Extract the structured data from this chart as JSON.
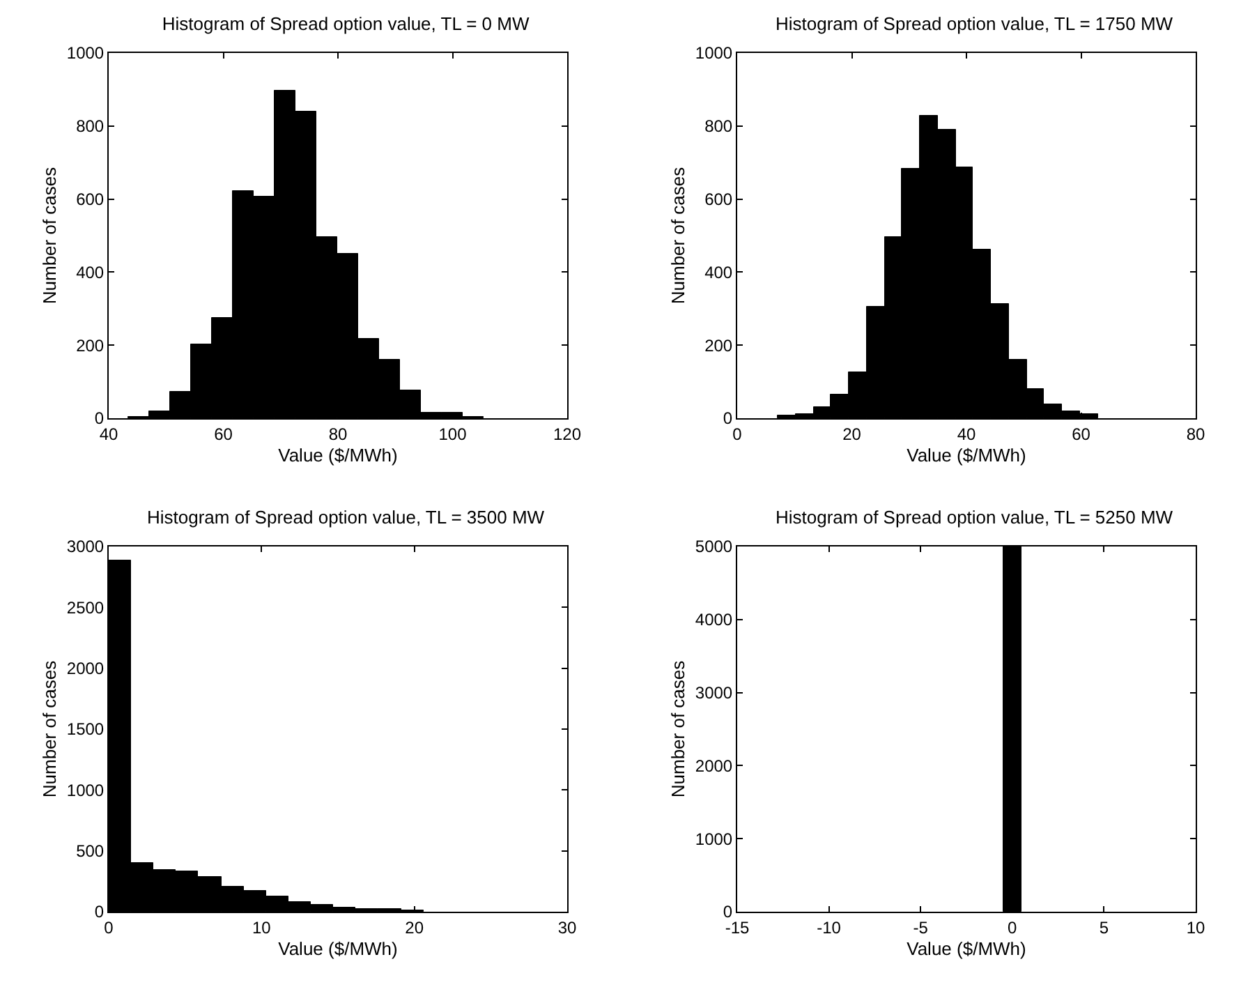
{
  "chart_data": [
    {
      "type": "histogram",
      "title": "Histogram of Spread option value, TL = 0 MW",
      "xlabel": "Value ($/MWh)",
      "ylabel": "Number of cases",
      "color": "#000000",
      "bins": [
        43.4,
        47.05,
        50.7,
        54.35,
        58.0,
        61.65,
        65.3,
        68.95,
        72.6,
        76.25,
        79.9,
        83.55,
        87.2,
        90.85,
        94.5,
        98.15,
        101.8,
        105.45
      ],
      "values": [
        5,
        19,
        73,
        204,
        274,
        622,
        605,
        897,
        840,
        497,
        452,
        219,
        162,
        75,
        15,
        15,
        5
      ],
      "xlim": [
        40,
        120
      ],
      "xticks": [
        40,
        60,
        80,
        100,
        120
      ],
      "ylim": [
        0,
        1000
      ],
      "yticks": [
        0,
        200,
        400,
        600,
        800,
        1000
      ]
    },
    {
      "type": "histogram",
      "title": "Histogram of Spread option value, TL = 1750 MW",
      "xlabel": "Value ($/MWh)",
      "ylabel": "Number of cases",
      "color": "#000000",
      "bins": [
        7.1,
        10.2,
        13.3,
        16.4,
        19.5,
        22.6,
        25.7,
        28.8,
        31.9,
        35.0,
        38.1,
        41.2,
        44.3,
        47.4,
        50.5,
        53.6,
        56.7,
        59.8,
        62.9
      ],
      "values": [
        9,
        13,
        32,
        66,
        127,
        306,
        497,
        682,
        828,
        790,
        688,
        461,
        312,
        159,
        79,
        38,
        18,
        10
      ],
      "xlim": [
        0,
        80
      ],
      "xticks": [
        0,
        20,
        40,
        60,
        80
      ],
      "ylim": [
        0,
        1000
      ],
      "yticks": [
        0,
        200,
        400,
        600,
        800,
        1000
      ]
    },
    {
      "type": "histogram",
      "title": "Histogram of Spread option value, TL = 3500 MW",
      "xlabel": "Value ($/MWh)",
      "ylabel": "Number of cases",
      "color": "#000000",
      "bins": [
        0,
        1.47,
        2.94,
        4.41,
        5.88,
        7.35,
        8.82,
        10.29,
        11.76,
        13.23,
        14.7,
        16.17,
        17.64,
        19.11,
        20.58
      ],
      "values": [
        2885,
        397,
        340,
        328,
        289,
        204,
        174,
        127,
        81,
        58,
        35,
        27,
        19,
        15
      ],
      "xlim": [
        0,
        30
      ],
      "xticks": [
        0,
        10,
        20,
        30
      ],
      "ylim": [
        0,
        3000
      ],
      "yticks": [
        0,
        500,
        1000,
        1500,
        2000,
        2500,
        3000
      ]
    },
    {
      "type": "histogram",
      "title": "Histogram of Spread option value, TL = 5250 MW",
      "xlabel": "Value ($/MWh)",
      "ylabel": "Number of cases",
      "color": "#000000",
      "bins": [
        -0.5,
        0.5
      ],
      "values": [
        5000
      ],
      "xlim": [
        -15,
        10
      ],
      "xticks": [
        -15,
        -10,
        -5,
        0,
        5,
        10
      ],
      "ylim": [
        0,
        5000
      ],
      "yticks": [
        0,
        1000,
        2000,
        3000,
        4000,
        5000
      ]
    }
  ]
}
